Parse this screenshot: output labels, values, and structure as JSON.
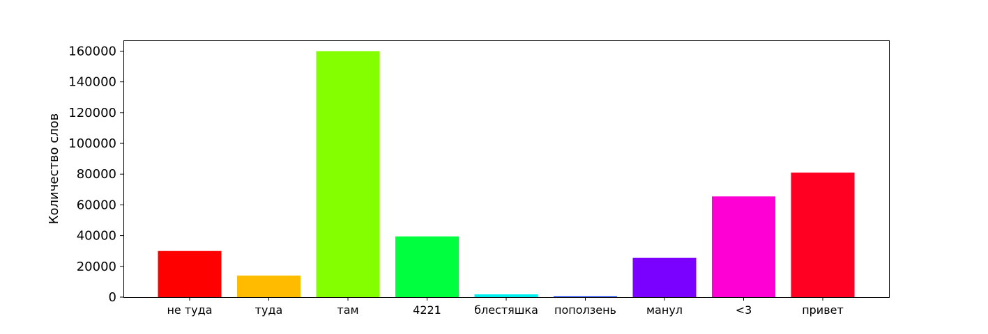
{
  "chart_data": {
    "type": "bar",
    "title": "",
    "xlabel": "",
    "ylabel": "Количество слов",
    "categories": [
      "не туда",
      "туда",
      "там",
      "4221",
      "блестяшка",
      "поползень",
      "манул",
      "<3",
      "привет"
    ],
    "values": [
      30000,
      14000,
      160000,
      39500,
      1800,
      500,
      25500,
      65500,
      81000
    ],
    "colors": [
      "#ff0000",
      "#ffbb00",
      "#84ff00",
      "#00ff3e",
      "#00f0f0",
      "#0033ff",
      "#7a00ff",
      "#ff00d4",
      "#ff0022"
    ],
    "ylim": [
      0,
      167000
    ],
    "yticks": [
      0,
      20000,
      40000,
      60000,
      80000,
      100000,
      120000,
      140000,
      160000
    ],
    "grid": false,
    "legend": "none"
  }
}
